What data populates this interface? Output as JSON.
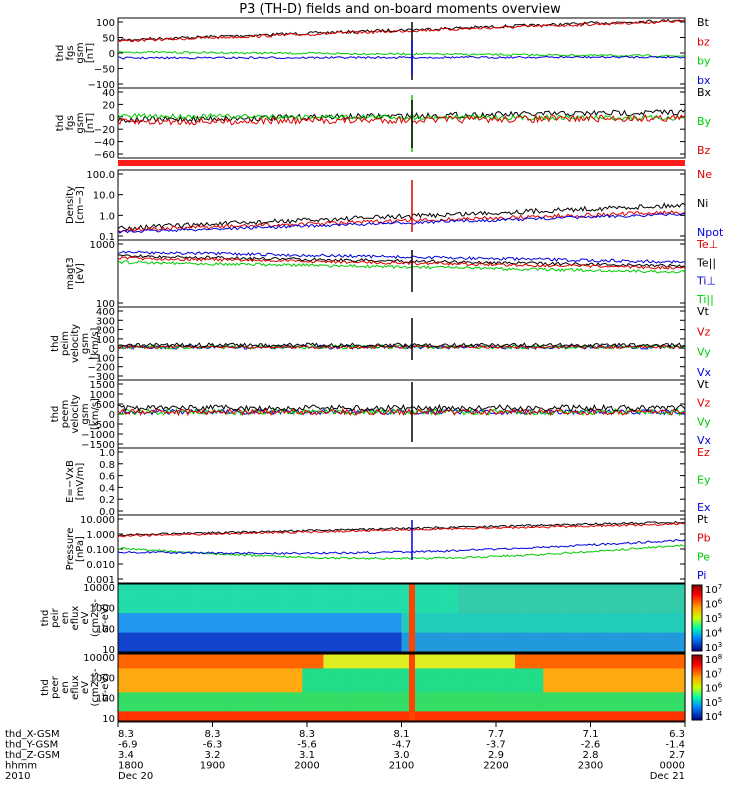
{
  "title": "P3 (TH-D) fields and on-board moments overview",
  "colors": {
    "black": "#000000",
    "red": "#dd0000",
    "green": "#00cc00",
    "blue": "#0000dd",
    "bar": "#ff1a1a"
  },
  "panels": [
    {
      "id": "fgs-gse",
      "ylabel": [
        "thd",
        "fgs",
        "gsm",
        "[nT]"
      ],
      "ticks": [
        "100",
        "50",
        "0",
        "−50",
        "−100"
      ],
      "legend": [
        {
          "text": "Bt",
          "color": "#000000"
        },
        {
          "text": "bz",
          "color": "#dd0000"
        },
        {
          "text": "by",
          "color": "#00cc00"
        },
        {
          "text": "bx",
          "color": "#0000dd"
        }
      ]
    },
    {
      "id": "fgs-gsm",
      "ylabel": [
        "thd",
        "fgs",
        "gsm",
        "[nT]"
      ],
      "ticks": [
        "40",
        "20",
        "0",
        "−20",
        "−40",
        "−60"
      ],
      "legend": [
        {
          "text": "Bx",
          "color": "#000000"
        },
        {
          "text": "By",
          "color": "#00cc00"
        },
        {
          "text": "Bz",
          "color": "#dd0000"
        }
      ]
    },
    {
      "id": "density",
      "ylabel": [
        "Density",
        "[cm−3]"
      ],
      "ticks": [
        "100.0",
        "10.0",
        "1.0",
        "0.1"
      ],
      "legend": [
        {
          "text": "Ne",
          "color": "#dd0000"
        },
        {
          "text": "Ni",
          "color": "#000000"
        },
        {
          "text": "Npot",
          "color": "#0000dd"
        }
      ]
    },
    {
      "id": "temperature",
      "ylabel": [
        "magt3",
        "[eV]"
      ],
      "ticks": [
        "1000",
        "100"
      ],
      "legend": [
        {
          "text": "Te⊥",
          "color": "#dd0000"
        },
        {
          "text": "Te||",
          "color": "#000000"
        },
        {
          "text": "Ti⊥",
          "color": "#0000dd"
        },
        {
          "text": "Ti||",
          "color": "#00cc00"
        }
      ]
    },
    {
      "id": "peim-velocity",
      "ylabel": [
        "thd",
        "peim",
        "velocity",
        "gsm",
        "[km/s]"
      ],
      "ticks": [
        "400",
        "300",
        "200",
        "100",
        "0",
        "−100",
        "−200",
        "−300"
      ],
      "legend": [
        {
          "text": "Vt",
          "color": "#000000"
        },
        {
          "text": "Vz",
          "color": "#dd0000"
        },
        {
          "text": "Vy",
          "color": "#00cc00"
        },
        {
          "text": "Vx",
          "color": "#0000dd"
        }
      ]
    },
    {
      "id": "peem-velocity",
      "ylabel": [
        "thd",
        "peem",
        "velocity",
        "gsm",
        "[km/s]"
      ],
      "ticks": [
        "1500",
        "1000",
        "500",
        "0",
        "−500",
        "−1000",
        "−1500"
      ],
      "legend": [
        {
          "text": "Vt",
          "color": "#000000"
        },
        {
          "text": "Vz",
          "color": "#dd0000"
        },
        {
          "text": "Vy",
          "color": "#00cc00"
        },
        {
          "text": "Vx",
          "color": "#0000dd"
        }
      ]
    },
    {
      "id": "efield",
      "ylabel": [
        "E=−VxB",
        "[mV/m]"
      ],
      "ticks": [
        "1.0",
        "0.8",
        "0.6",
        "0.4",
        "0.2",
        "0.0"
      ],
      "legend": [
        {
          "text": "Ez",
          "color": "#dd0000"
        },
        {
          "text": "Ey",
          "color": "#00cc00"
        },
        {
          "text": "Ex",
          "color": "#0000dd"
        }
      ]
    },
    {
      "id": "pressure",
      "ylabel": [
        "Pressure",
        "[nPa]"
      ],
      "ticks": [
        "10.000",
        "1.000",
        "0.100",
        "0.010",
        "0.001"
      ],
      "legend": [
        {
          "text": "Pt",
          "color": "#000000"
        },
        {
          "text": "Pb",
          "color": "#dd0000"
        },
        {
          "text": "Pe",
          "color": "#00cc00"
        },
        {
          "text": "Pi",
          "color": "#0000dd"
        }
      ]
    },
    {
      "id": "peir-spec",
      "ylabel": [
        "thd",
        "peir",
        "en",
        "eflux",
        "eV",
        "(cm2-s-",
        "sr-eV)"
      ],
      "ticks": [
        "10000",
        "1000",
        "100",
        "10"
      ],
      "colorbar": [
        "10^7",
        "10^6",
        "10^5",
        "10^4",
        "10^3"
      ]
    },
    {
      "id": "peer-spec",
      "ylabel": [
        "thd",
        "peer",
        "en",
        "eflux",
        "eV",
        "(cm2-s-",
        "sr-eV)"
      ],
      "ticks": [
        "10000",
        "1000",
        "100",
        "10"
      ],
      "colorbar": [
        "10^8",
        "10^7",
        "10^6",
        "10^5",
        "10^4"
      ]
    }
  ],
  "ephemeris": {
    "labels": [
      "thd_X-GSM",
      "thd_Y-GSM",
      "thd_Z-GSM",
      "hhmm",
      "2010"
    ],
    "columns": [
      [
        "8.3",
        "-6.9",
        "3.4",
        "1800",
        "Dec 20"
      ],
      [
        "8.3",
        "-6.3",
        "3.2",
        "1900",
        ""
      ],
      [
        "8.3",
        "-5.6",
        "3.1",
        "2000",
        ""
      ],
      [
        "8.1",
        "-4.7",
        "3.0",
        "2100",
        ""
      ],
      [
        "7.7",
        "-3.7",
        "2.9",
        "2200",
        ""
      ],
      [
        "7.1",
        "-2.6",
        "2.8",
        "2300",
        ""
      ],
      [
        "6.3",
        "-1.4",
        "2.7",
        "0000",
        "Dec 21"
      ]
    ]
  },
  "chart_data": {
    "type": "line",
    "title": "P3 (TH-D) fields and on-board moments overview",
    "x_start": "2010-12-20 18:00",
    "x_end": "2010-12-21 00:00",
    "x_ticks": [
      "1800",
      "1900",
      "2000",
      "2100",
      "2200",
      "2300",
      "0000"
    ],
    "event_time": "2010-12-20 21:07",
    "series": [
      {
        "name": "Bt",
        "panel": "fgs-gse",
        "values": [
          40,
          45,
          55,
          65,
          70,
          80,
          95
        ]
      },
      {
        "name": "bz",
        "panel": "fgs-gse",
        "values": [
          40,
          44,
          54,
          63,
          69,
          79,
          94
        ]
      },
      {
        "name": "by",
        "panel": "fgs-gse",
        "values": [
          -10,
          -12,
          -14,
          -15,
          -13,
          -12,
          -10
        ]
      },
      {
        "name": "bx",
        "panel": "fgs-gse",
        "values": [
          -15,
          -17,
          -18,
          -20,
          -18,
          -16,
          -14
        ]
      },
      {
        "name": "Ni",
        "panel": "density",
        "values": [
          0.4,
          0.5,
          0.6,
          0.8,
          0.5,
          1.0,
          2.5
        ]
      },
      {
        "name": "Ne",
        "panel": "density",
        "values": [
          0.35,
          0.4,
          0.5,
          0.7,
          0.4,
          0.7,
          1.0
        ]
      },
      {
        "name": "Npot",
        "panel": "density",
        "values": [
          0.3,
          0.3,
          0.35,
          0.4,
          0.35,
          0.6,
          0.8
        ]
      },
      {
        "name": "Pt",
        "panel": "pressure",
        "values": [
          2.0,
          2.5,
          3.0,
          3.5,
          4.0,
          5.0,
          6.5
        ]
      },
      {
        "name": "Pe",
        "panel": "pressure",
        "values": [
          0.12,
          0.15,
          0.12,
          0.05,
          0.05,
          0.1,
          0.15
        ]
      },
      {
        "name": "Pi",
        "panel": "pressure",
        "values": [
          0.1,
          0.1,
          0.1,
          0.08,
          0.06,
          0.12,
          0.3
        ]
      }
    ]
  }
}
